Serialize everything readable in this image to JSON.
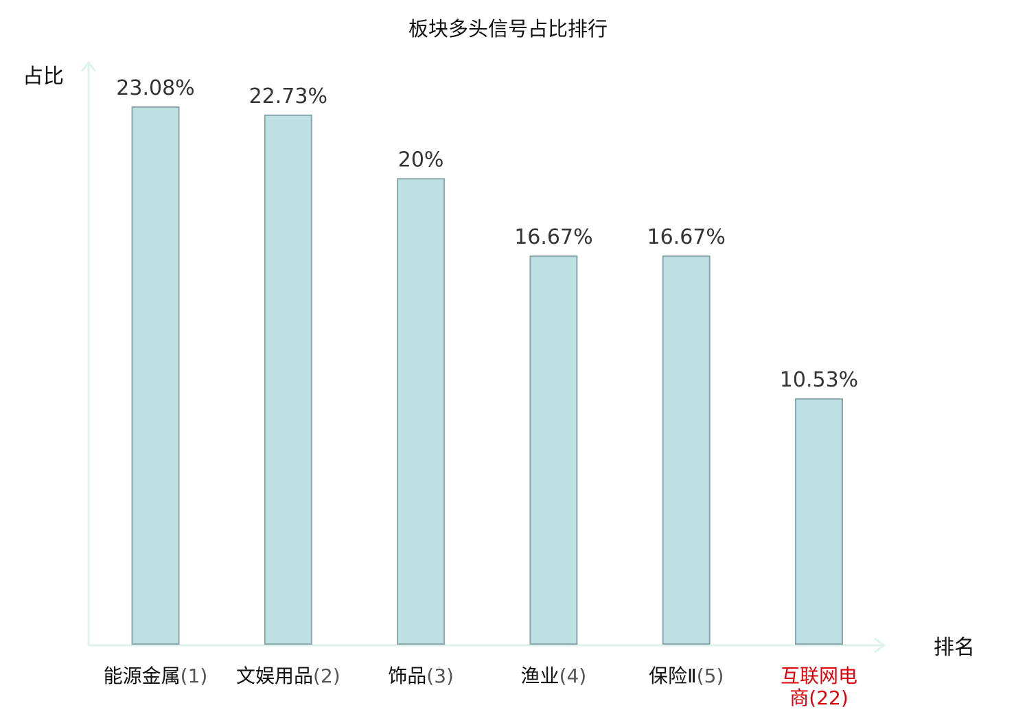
{
  "chart_data": {
    "type": "bar",
    "title": "板块多头信号占比排行",
    "xlabel": "排名",
    "ylabel": "占比",
    "categories": [
      {
        "name": "能源金属",
        "rank": "(1)",
        "highlight": false
      },
      {
        "name": "文娱用品",
        "rank": "(2)",
        "highlight": false
      },
      {
        "name": "饰品",
        "rank": "(3)",
        "highlight": false
      },
      {
        "name": "渔业",
        "rank": "(4)",
        "highlight": false
      },
      {
        "name": "保险Ⅱ",
        "rank": "(5)",
        "highlight": false
      },
      {
        "name": "互联网电商",
        "rank": "(22)",
        "highlight": true
      }
    ],
    "values": [
      23.08,
      22.73,
      20,
      16.67,
      16.67,
      10.53
    ],
    "value_labels": [
      "23.08%",
      "22.73%",
      "20%",
      "16.67%",
      "16.67%",
      "10.53%"
    ],
    "ylim": [
      0,
      25
    ],
    "grid": false,
    "legend": "none",
    "colors": {
      "bar_fill": "#bde0e3",
      "bar_stroke": "#8aa8ab",
      "axis": "#dff2ef",
      "tick_text": "#111111",
      "tick_text_highlight": "#e0000a",
      "rank_text": "#555555"
    }
  }
}
